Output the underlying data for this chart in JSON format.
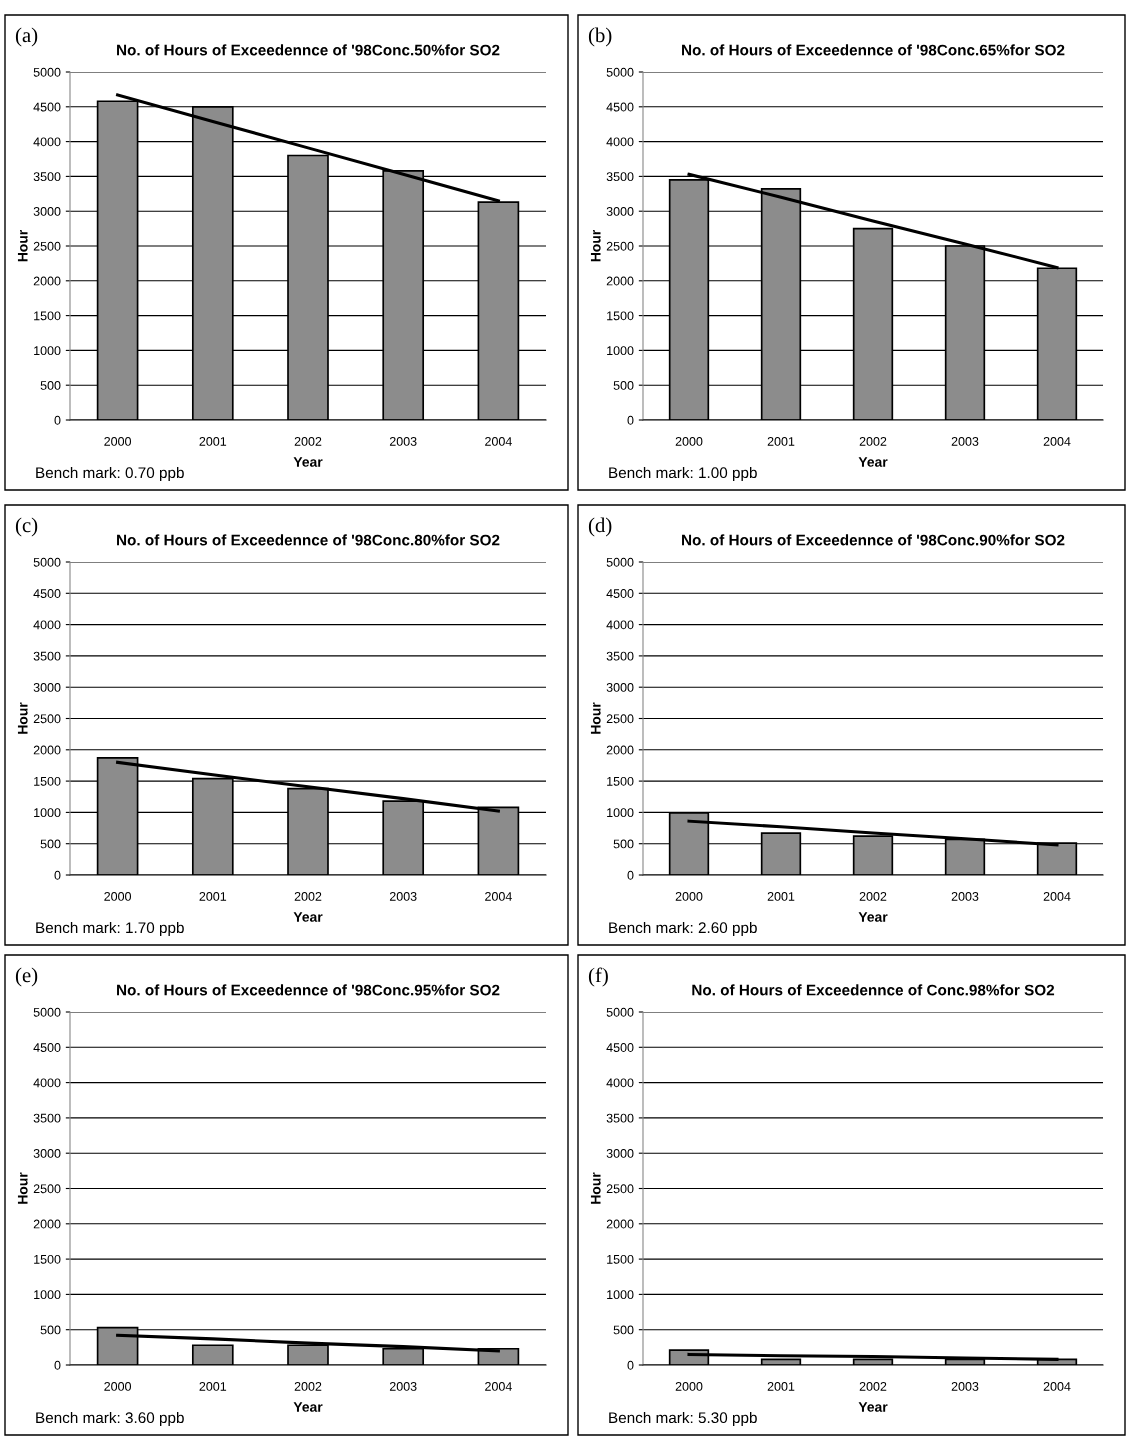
{
  "chart_data": [
    {
      "type": "bar",
      "title": "No. of Hours of Exceedennce of '98Conc.50%for SO2",
      "xlabel": "Year",
      "ylabel": "Hour",
      "categories": [
        "2000",
        "2001",
        "2002",
        "2003",
        "2004"
      ],
      "series": [
        {
          "color": "#8c8c8c",
          "values": [
            4580,
            4500,
            3800,
            3580,
            3130
          ]
        },
        {
          "type": "line",
          "color": "#000000",
          "values": [
            4670,
            4290,
            3910,
            3530,
            3150
          ]
        }
      ],
      "ylim": [
        0,
        5000
      ],
      "yticks": [
        0,
        500,
        1000,
        1500,
        2000,
        2500,
        3000,
        3500,
        4000,
        4500,
        5000
      ],
      "grid": "y",
      "annotations": [
        "(a)",
        "Bench mark: 0.70 ppb"
      ]
    },
    {
      "type": "bar",
      "title": "No. of Hours of Exceedennce of '98Conc.65%for SO2",
      "xlabel": "Year",
      "ylabel": "Hour",
      "categories": [
        "2000",
        "2001",
        "2002",
        "2003",
        "2004"
      ],
      "series": [
        {
          "color": "#8c8c8c",
          "values": [
            3450,
            3320,
            2750,
            2500,
            2180
          ]
        },
        {
          "type": "line",
          "color": "#000000",
          "values": [
            3530,
            3200,
            2860,
            2530,
            2190
          ]
        }
      ],
      "ylim": [
        0,
        5000
      ],
      "yticks": [
        0,
        500,
        1000,
        1500,
        2000,
        2500,
        3000,
        3500,
        4000,
        4500,
        5000
      ],
      "grid": "y",
      "annotations": [
        "(b)",
        "Bench mark: 1.00 ppb"
      ]
    },
    {
      "type": "bar",
      "title": "No. of Hours of Exceedennce of '98Conc.80%for SO2",
      "xlabel": "Year",
      "ylabel": "Hour",
      "categories": [
        "2000",
        "2001",
        "2002",
        "2003",
        "2004"
      ],
      "series": [
        {
          "color": "#8c8c8c",
          "values": [
            1870,
            1540,
            1380,
            1180,
            1080
          ]
        },
        {
          "type": "line",
          "color": "#000000",
          "values": [
            1800,
            1600,
            1410,
            1220,
            1020
          ]
        }
      ],
      "ylim": [
        0,
        5000
      ],
      "yticks": [
        0,
        500,
        1000,
        1500,
        2000,
        2500,
        3000,
        3500,
        4000,
        4500,
        5000
      ],
      "grid": "y",
      "annotations": [
        "(c)",
        "Bench mark: 1.70 ppb"
      ]
    },
    {
      "type": "bar",
      "title": "No. of Hours of Exceedennce of '98Conc.90%for SO2",
      "xlabel": "Year",
      "ylabel": "Hour",
      "categories": [
        "2000",
        "2001",
        "2002",
        "2003",
        "2004"
      ],
      "series": [
        {
          "color": "#8c8c8c",
          "values": [
            990,
            670,
            620,
            570,
            510
          ]
        },
        {
          "type": "line",
          "color": "#000000",
          "values": [
            860,
            770,
            670,
            580,
            480
          ]
        }
      ],
      "ylim": [
        0,
        5000
      ],
      "yticks": [
        0,
        500,
        1000,
        1500,
        2000,
        2500,
        3000,
        3500,
        4000,
        4500,
        5000
      ],
      "grid": "y",
      "annotations": [
        "(d)",
        "Bench mark: 2.60 ppb"
      ]
    },
    {
      "type": "bar",
      "title": "No. of Hours of Exceedennce of '98Conc.95%for SO2",
      "xlabel": "Year",
      "ylabel": "Hour",
      "categories": [
        "2000",
        "2001",
        "2002",
        "2003",
        "2004"
      ],
      "series": [
        {
          "color": "#8c8c8c",
          "values": [
            530,
            280,
            280,
            230,
            230
          ]
        },
        {
          "type": "line",
          "color": "#000000",
          "values": [
            420,
            370,
            310,
            260,
            200
          ]
        }
      ],
      "ylim": [
        0,
        5000
      ],
      "yticks": [
        0,
        500,
        1000,
        1500,
        2000,
        2500,
        3000,
        3500,
        4000,
        4500,
        5000
      ],
      "grid": "y",
      "annotations": [
        "(e)",
        "Bench mark: 3.60 ppb"
      ]
    },
    {
      "type": "bar",
      "title": "No. of Hours of Exceedennce of Conc.98%for SO2",
      "xlabel": "Year",
      "ylabel": "Hour",
      "categories": [
        "2000",
        "2001",
        "2002",
        "2003",
        "2004"
      ],
      "series": [
        {
          "color": "#8c8c8c",
          "values": [
            210,
            80,
            80,
            80,
            80
          ]
        },
        {
          "type": "line",
          "color": "#000000",
          "values": [
            150,
            130,
            120,
            100,
            80
          ]
        }
      ],
      "ylim": [
        0,
        5000
      ],
      "yticks": [
        0,
        500,
        1000,
        1500,
        2000,
        2500,
        3000,
        3500,
        4000,
        4500,
        5000
      ],
      "grid": "y",
      "annotations": [
        "(f)",
        "Bench mark: 5.30 ppb"
      ]
    }
  ]
}
